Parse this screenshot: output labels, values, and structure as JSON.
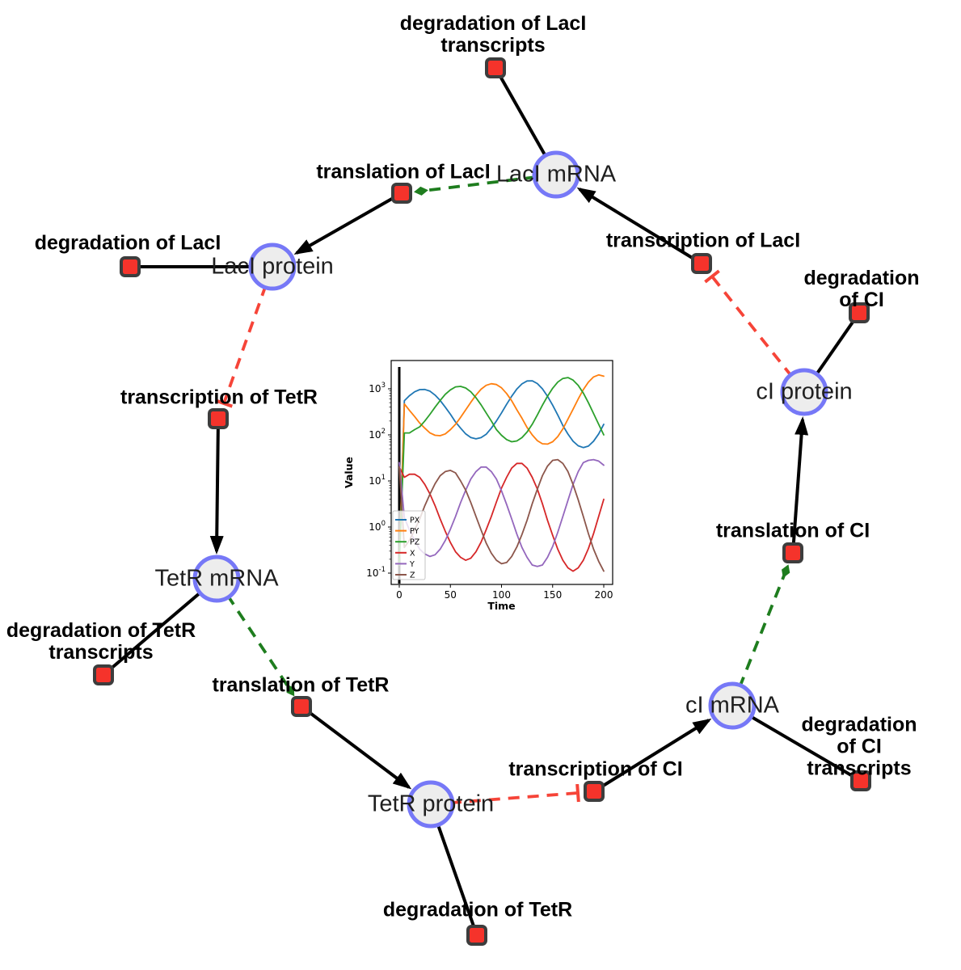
{
  "network": {
    "species": [
      {
        "label": "LacI mRNA"
      },
      {
        "label": "LacI protein"
      },
      {
        "label": "TetR mRNA"
      },
      {
        "label": "TetR protein"
      },
      {
        "label": "cI mRNA"
      },
      {
        "label": "cI protein"
      }
    ],
    "reactions": [
      {
        "label": "degradation of LacI\ntranscripts"
      },
      {
        "label": "translation of LacI"
      },
      {
        "label": "transcription of LacI"
      },
      {
        "label": "degradation of LacI"
      },
      {
        "label": "transcription of TetR"
      },
      {
        "label": "degradation of TetR\ntranscripts"
      },
      {
        "label": "translation of TetR"
      },
      {
        "label": "degradation of TetR"
      },
      {
        "label": "transcription of CI"
      },
      {
        "label": "degradation of CI\ntranscripts"
      },
      {
        "label": "translation of CI"
      },
      {
        "label": "degradation of CI"
      }
    ],
    "edges": [
      {
        "from": "LacI mRNA",
        "to": "degradation of LacI transcripts",
        "type": "reactant"
      },
      {
        "from": "LacI mRNA",
        "to": "translation of LacI",
        "type": "modifier"
      },
      {
        "from": "transcription of LacI",
        "to": "LacI mRNA",
        "type": "product"
      },
      {
        "from": "translation of LacI",
        "to": "LacI protein",
        "type": "product"
      },
      {
        "from": "LacI protein",
        "to": "degradation of LacI",
        "type": "reactant"
      },
      {
        "from": "LacI protein",
        "to": "transcription of TetR",
        "type": "inhibition"
      },
      {
        "from": "transcription of TetR",
        "to": "TetR mRNA",
        "type": "product"
      },
      {
        "from": "TetR mRNA",
        "to": "degradation of TetR transcripts",
        "type": "reactant"
      },
      {
        "from": "TetR mRNA",
        "to": "translation of TetR",
        "type": "modifier"
      },
      {
        "from": "translation of TetR",
        "to": "TetR protein",
        "type": "product"
      },
      {
        "from": "TetR protein",
        "to": "degradation of TetR",
        "type": "reactant"
      },
      {
        "from": "TetR protein",
        "to": "transcription of CI",
        "type": "inhibition"
      },
      {
        "from": "transcription of CI",
        "to": "cI mRNA",
        "type": "product"
      },
      {
        "from": "cI mRNA",
        "to": "degradation of CI transcripts",
        "type": "reactant"
      },
      {
        "from": "cI mRNA",
        "to": "translation of CI",
        "type": "modifier"
      },
      {
        "from": "translation of CI",
        "to": "cI protein",
        "type": "product"
      },
      {
        "from": "cI protein",
        "to": "degradation of CI",
        "type": "reactant"
      },
      {
        "from": "cI protein",
        "to": "transcription of LacI",
        "type": "inhibition"
      }
    ],
    "colors": {
      "species_fill": "#ededed",
      "species_border": "#7678f7",
      "reaction_fill": "#f5332b",
      "reaction_border": "#3d3d3d",
      "reaction_product_edge": "#000000",
      "modifier_edge": "#1e7d1e",
      "inhibition_edge": "#f64438"
    }
  },
  "chart_data": {
    "type": "line",
    "title": "",
    "xlabel": "Time",
    "ylabel": "Value",
    "yscale": "log",
    "x_ticks": [
      0,
      50,
      100,
      150,
      200
    ],
    "y_tick_exponents": [
      -1,
      0,
      1,
      2,
      3
    ],
    "xlim": [
      0,
      200
    ],
    "ylim_log10": [
      -1.25,
      3.6
    ],
    "legend_position": "lower left",
    "grid": false,
    "t": [
      0,
      5,
      10,
      15,
      20,
      25,
      30,
      35,
      40,
      45,
      50,
      55,
      60,
      65,
      70,
      75,
      80,
      85,
      90,
      95,
      100,
      105,
      110,
      115,
      120,
      125,
      130,
      135,
      140,
      145,
      150,
      155,
      160,
      165,
      170,
      175,
      180,
      185,
      190,
      195,
      200
    ],
    "series": [
      {
        "name": "PX",
        "color": "#1f77b4",
        "values": [
          0.15,
          550,
          710,
          860,
          960,
          970,
          890,
          730,
          560,
          400,
          280,
          190,
          140,
          105,
          88,
          82,
          87,
          103,
          140,
          200,
          300,
          460,
          690,
          990,
          1280,
          1480,
          1490,
          1300,
          1000,
          690,
          440,
          270,
          160,
          104,
          73,
          58,
          53,
          57,
          73,
          105,
          170
        ]
      },
      {
        "name": "PY",
        "color": "#ff7f0e",
        "values": [
          0.15,
          470,
          340,
          250,
          180,
          140,
          110,
          98,
          96,
          105,
          130,
          170,
          240,
          350,
          510,
          730,
          980,
          1190,
          1290,
          1240,
          1050,
          790,
          550,
          350,
          230,
          145,
          100,
          75,
          64,
          63,
          71,
          92,
          135,
          220,
          360,
          600,
          960,
          1400,
          1810,
          2000,
          1880
        ]
      },
      {
        "name": "PZ",
        "color": "#2ca02c",
        "values": [
          0.15,
          110,
          110,
          130,
          150,
          200,
          280,
          400,
          560,
          760,
          950,
          1100,
          1130,
          1040,
          860,
          640,
          450,
          300,
          200,
          130,
          98,
          79,
          71,
          74,
          87,
          115,
          170,
          270,
          440,
          690,
          1030,
          1400,
          1680,
          1750,
          1550,
          1190,
          810,
          500,
          290,
          170,
          100
        ]
      },
      {
        "name": "X",
        "color": "#d62728",
        "values": [
          20,
          12,
          14,
          14,
          12,
          8.4,
          5.2,
          2.9,
          1.5,
          0.81,
          0.46,
          0.29,
          0.22,
          0.19,
          0.21,
          0.29,
          0.47,
          0.87,
          1.7,
          3.5,
          7,
          12,
          19,
          24,
          24,
          19,
          12,
          6.7,
          3.2,
          1.4,
          0.66,
          0.33,
          0.19,
          0.13,
          0.11,
          0.13,
          0.19,
          0.34,
          0.72,
          1.7,
          4
        ]
      },
      {
        "name": "Y",
        "color": "#9467bd",
        "values": [
          25,
          1.6,
          0.86,
          0.51,
          0.33,
          0.26,
          0.23,
          0.25,
          0.33,
          0.51,
          0.9,
          1.7,
          3.4,
          6.3,
          11,
          16,
          20,
          20,
          16,
          11,
          6.1,
          3.1,
          1.5,
          0.7,
          0.36,
          0.22,
          0.15,
          0.14,
          0.15,
          0.22,
          0.38,
          0.77,
          1.7,
          3.8,
          8.4,
          16,
          25,
          28,
          29,
          27,
          22
        ]
      },
      {
        "name": "Z",
        "color": "#8c564b",
        "values": [
          20,
          0.36,
          0.52,
          0.86,
          1.5,
          2.9,
          5.2,
          8.7,
          13,
          16,
          17,
          15,
          10,
          6.3,
          3.4,
          1.7,
          0.86,
          0.45,
          0.27,
          0.19,
          0.16,
          0.17,
          0.23,
          0.37,
          0.69,
          1.4,
          3.2,
          6.6,
          13,
          21,
          28,
          29,
          24,
          16,
          8.4,
          3.9,
          1.7,
          0.72,
          0.33,
          0.18,
          0.11
        ]
      }
    ]
  }
}
